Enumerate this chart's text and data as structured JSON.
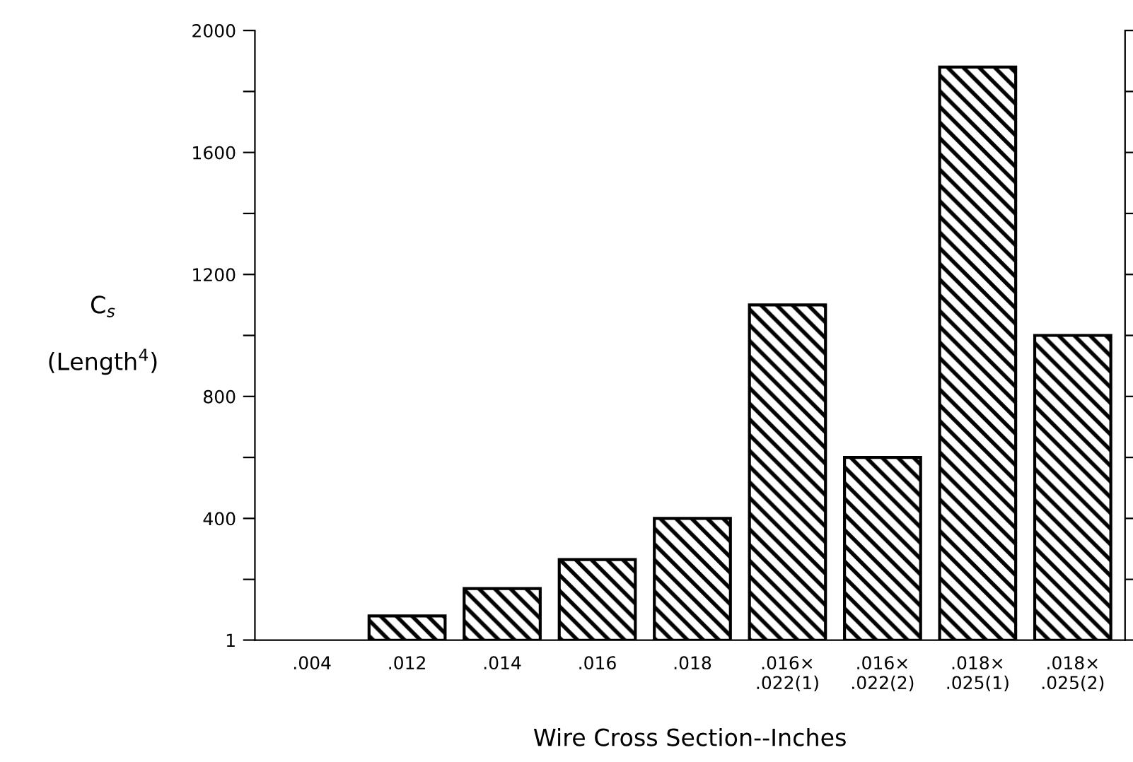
{
  "chart_data": {
    "type": "bar",
    "xlabel": "Wire Cross Section--Inches",
    "ylabel": "C$_{s}$\n\n(Length$^{4}$)",
    "categories": [
      ".004",
      ".012",
      ".014",
      ".016",
      ".018",
      ".016×\n.022(1)",
      ".016×\n.022(2)",
      ".018×\n.025(1)",
      ".018×\n.025(2)"
    ],
    "values": [
      null,
      80,
      170,
      265,
      400,
      1100,
      600,
      1880,
      1000
    ],
    "color": "#000000",
    "ylim": [
      1,
      2000
    ],
    "yticks": [
      1,
      {
        "value": 200,
        "label": null
      },
      400,
      {
        "value": 600,
        "label": null
      },
      800,
      {
        "value": 1000,
        "label": null
      },
      1200,
      {
        "value": 1400,
        "label": null
      },
      1600,
      {
        "value": 1800,
        "label": null
      },
      2000
    ],
    "grid": false
  }
}
